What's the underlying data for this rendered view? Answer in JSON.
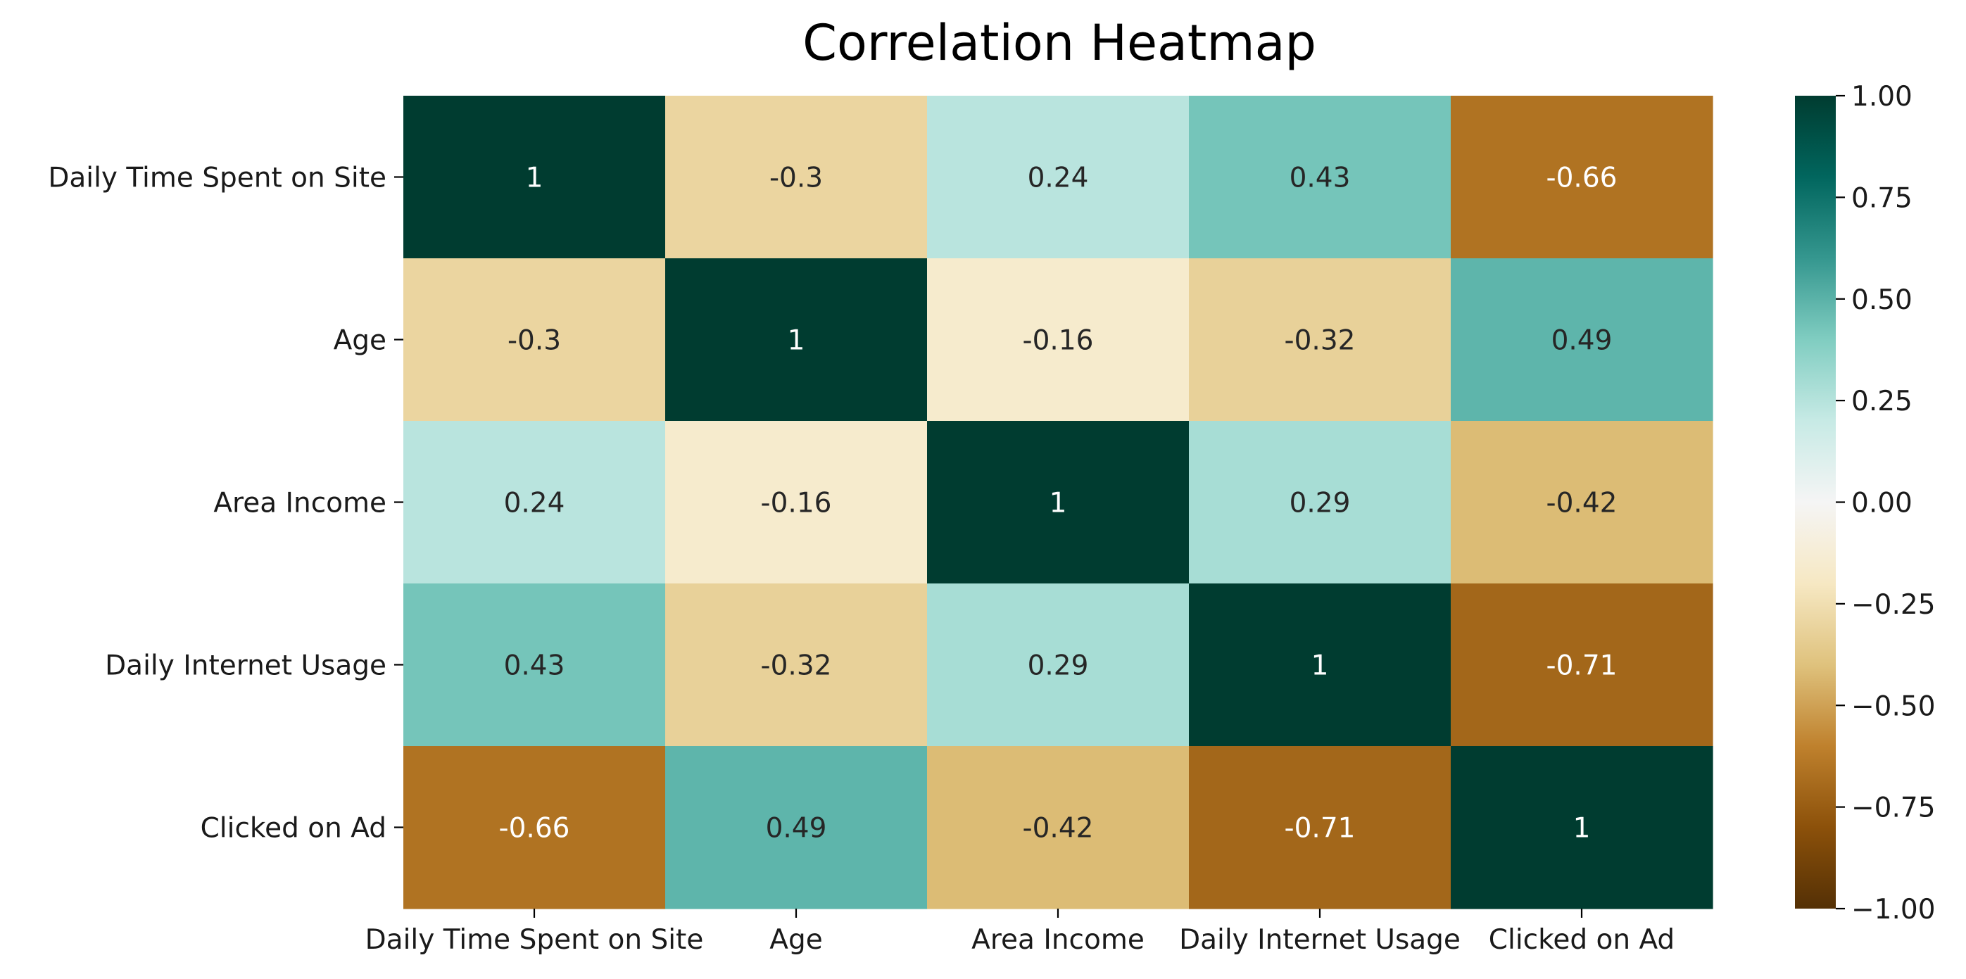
{
  "chart_data": {
    "type": "heatmap",
    "title": "Correlation Heatmap",
    "rows": [
      "Daily Time Spent on Site",
      "Age",
      "Area Income",
      "Daily Internet Usage",
      "Clicked on Ad"
    ],
    "columns": [
      "Daily Time Spent on Site",
      "Age",
      "Area Income",
      "Daily Internet Usage",
      "Clicked on Ad"
    ],
    "values": [
      [
        1,
        -0.3,
        0.24,
        0.43,
        -0.66
      ],
      [
        -0.3,
        1,
        -0.16,
        -0.32,
        0.49
      ],
      [
        0.24,
        -0.16,
        1,
        0.29,
        -0.42
      ],
      [
        0.43,
        -0.32,
        0.29,
        1,
        -0.71
      ],
      [
        -0.66,
        0.49,
        -0.42,
        -0.71,
        1
      ]
    ],
    "value_labels": [
      [
        "1",
        "-0.3",
        "0.24",
        "0.43",
        "-0.66"
      ],
      [
        "-0.3",
        "1",
        "-0.16",
        "-0.32",
        "0.49"
      ],
      [
        "0.24",
        "-0.16",
        "1",
        "0.29",
        "-0.42"
      ],
      [
        "0.43",
        "-0.32",
        "0.29",
        "1",
        "-0.71"
      ],
      [
        "-0.66",
        "0.49",
        "-0.42",
        "-0.71",
        "1"
      ]
    ],
    "colormap": "BrBG",
    "colormap_stops": [
      "#543005",
      "#8c510a",
      "#bf812d",
      "#dfc27d",
      "#f6e8c3",
      "#f5f5f5",
      "#c7eae5",
      "#80cdc1",
      "#35978f",
      "#01665e",
      "#003c30"
    ],
    "vmin": -1.0,
    "vmax": 1.0,
    "colorbar_ticks": [
      1.0,
      0.75,
      0.5,
      0.25,
      0.0,
      -0.25,
      -0.5,
      -0.75,
      -1.0
    ],
    "colorbar_tick_labels": [
      "1.00",
      "0.75",
      "0.50",
      "0.25",
      "0.00",
      "−0.25",
      "−0.50",
      "−0.75",
      "−1.00"
    ],
    "legend": "colorbar-right",
    "grid": false
  }
}
